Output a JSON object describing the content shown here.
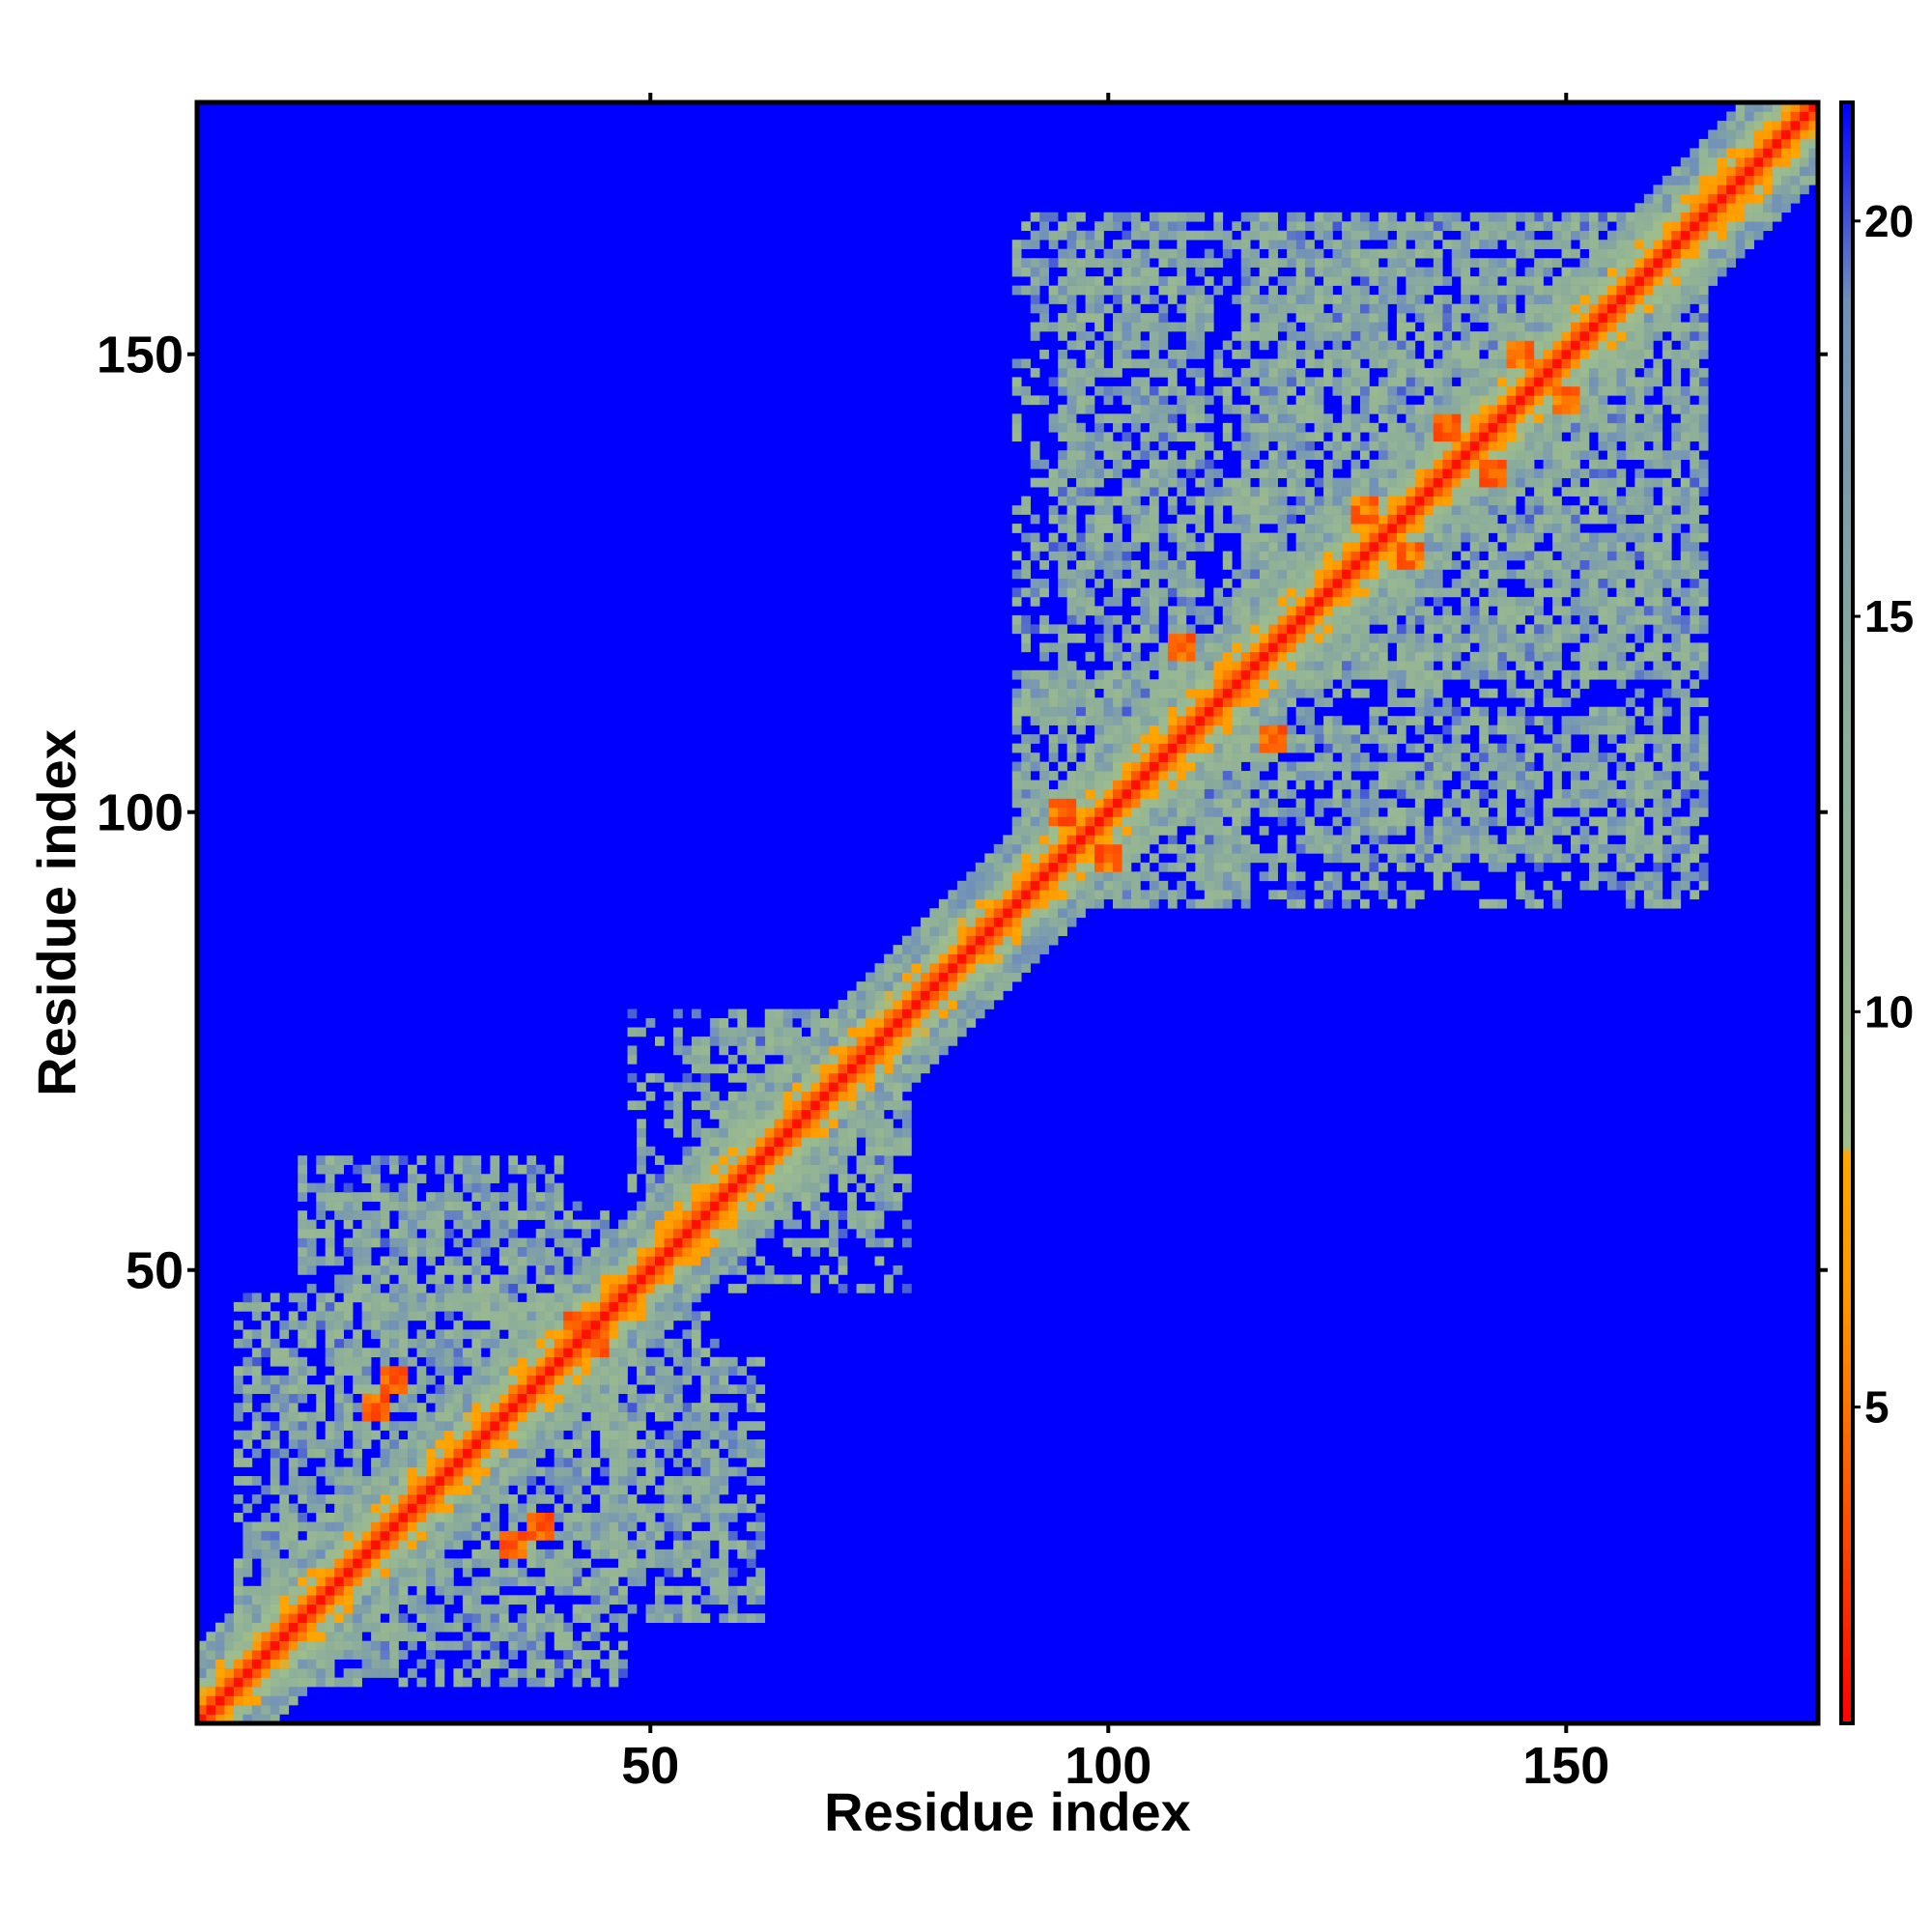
{
  "chart_data": {
    "type": "heatmap",
    "title": "",
    "xlabel": "Residue index",
    "ylabel": "Residue index",
    "xlim": [
      1,
      177
    ],
    "ylim": [
      1,
      177
    ],
    "xticks": [
      50,
      100,
      150
    ],
    "yticks": [
      50,
      100,
      150
    ],
    "colorbar": {
      "range": [
        1,
        21.5
      ],
      "ticks": [
        5,
        10,
        15,
        20
      ],
      "stops": [
        {
          "value": 1,
          "color": "#ff0000"
        },
        {
          "value": 4,
          "color": "#ff5a00"
        },
        {
          "value": 6.5,
          "color": "#ff9900"
        },
        {
          "value": 8.2,
          "color": "#ffa500"
        },
        {
          "value": 8.3,
          "color": "#9fbe8c"
        },
        {
          "value": 14,
          "color": "#8aab9c"
        },
        {
          "value": 19,
          "color": "#6f8fbb"
        },
        {
          "value": 21.5,
          "color": "#0000ff"
        }
      ]
    },
    "background_color": "#0000ff",
    "diagonal": {
      "band_width": 3
    },
    "clusters": [
      {
        "x": [
          5,
          47
        ],
        "y": [
          5,
          47
        ],
        "density": 0.4
      },
      {
        "x": [
          15,
          45
        ],
        "y": [
          40,
          58
        ],
        "density": 0.5
      },
      {
        "x": [
          45,
          62
        ],
        "y": [
          12,
          40
        ],
        "density": 0.5
      },
      {
        "x": [
          48,
          72
        ],
        "y": [
          58,
          78
        ],
        "density": 0.35
      },
      {
        "x": [
          60,
          78
        ],
        "y": [
          55,
          70
        ],
        "density": 0.35
      },
      {
        "x": [
          90,
          115
        ],
        "y": [
          90,
          115
        ],
        "density": 0.5
      },
      {
        "x": [
          110,
          165
        ],
        "y": [
          95,
          115
        ],
        "density": 0.45
      },
      {
        "x": [
          90,
          110
        ],
        "y": [
          110,
          165
        ],
        "density": 0.45
      },
      {
        "x": [
          115,
          165
        ],
        "y": [
          115,
          165
        ],
        "density": 0.55
      }
    ],
    "close_contacts": [
      [
        95,
        100
      ],
      [
        100,
        95
      ],
      [
        108,
        118
      ],
      [
        118,
        108
      ],
      [
        128,
        133
      ],
      [
        133,
        128
      ],
      [
        137,
        142
      ],
      [
        142,
        137
      ],
      [
        145,
        150
      ],
      [
        150,
        145
      ],
      [
        20,
        35
      ],
      [
        35,
        20
      ],
      [
        22,
        38
      ],
      [
        38,
        22
      ],
      [
        42,
        44
      ],
      [
        44,
        42
      ]
    ]
  }
}
